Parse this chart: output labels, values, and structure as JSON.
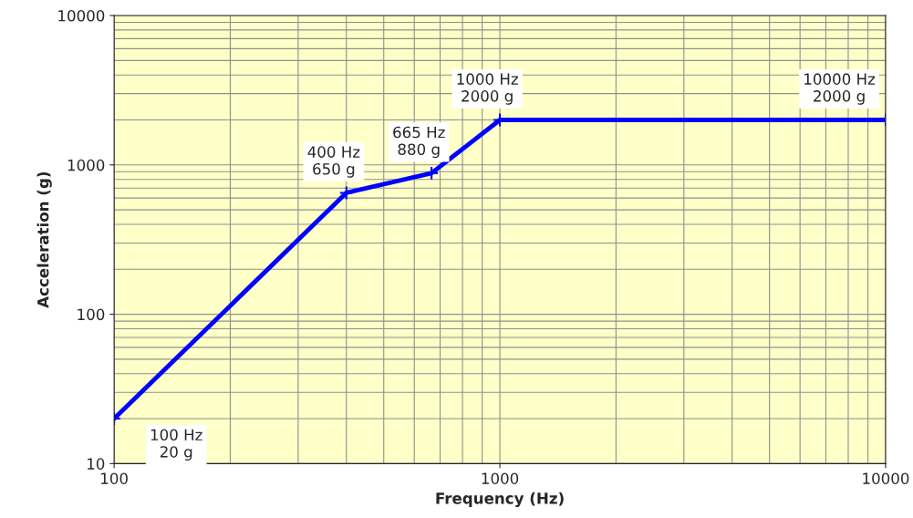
{
  "chart_data": {
    "type": "line",
    "xlabel": "Frequency (Hz)",
    "ylabel": "Acceleration (g)",
    "x": [
      100,
      400,
      665,
      1000,
      10000
    ],
    "series": [
      {
        "color": "#0000ff",
        "values": [
          20,
          650,
          880,
          2000,
          2000
        ]
      }
    ],
    "annotations": [
      {
        "text": "100 Hz\n20 g",
        "x": 100,
        "y": 20
      },
      {
        "text": "400 Hz\n650 g",
        "x": 400,
        "y": 650
      },
      {
        "text": "665 Hz\n880 g",
        "x": 665,
        "y": 880
      },
      {
        "text": "1000 Hz\n2000 g",
        "x": 1000,
        "y": 2000
      },
      {
        "text": "10000 Hz\n2000 g",
        "x": 10000,
        "y": 2000
      }
    ],
    "log": "xy",
    "xlim": [
      100,
      10000
    ],
    "ylim": [
      10,
      10000
    ],
    "xticks": [
      100,
      1000,
      10000
    ],
    "yticks": [
      10,
      100,
      1000,
      10000
    ],
    "grid": true,
    "marker": "cross",
    "line_style": "solid"
  }
}
